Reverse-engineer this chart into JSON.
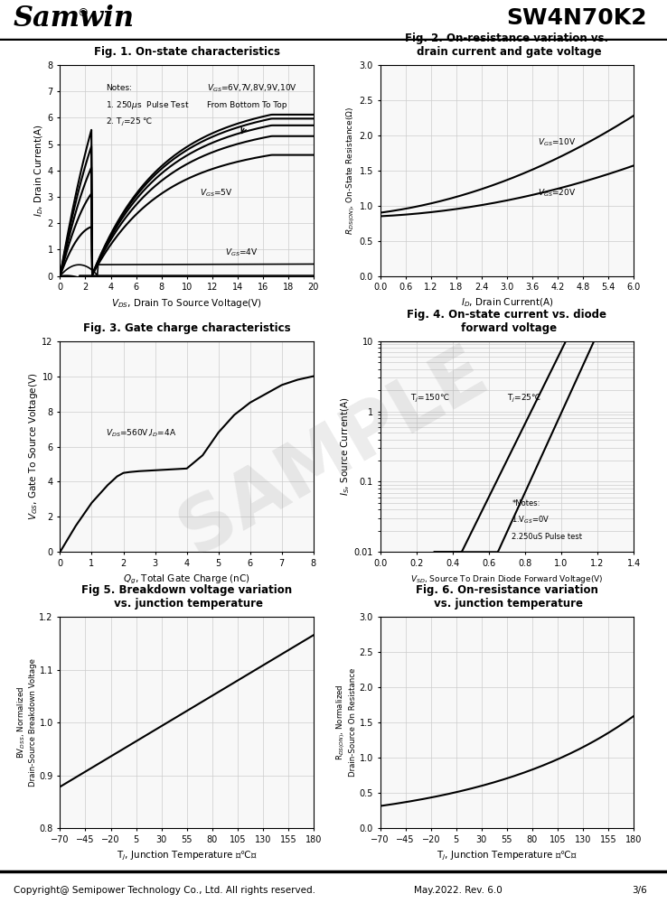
{
  "title_left": "Samwin",
  "title_right": "SW4N70K2",
  "fig1_title": "Fig. 1. On-state characteristics",
  "fig2_title": "Fig. 2. On-resistance variation vs.\n drain current and gate voltage",
  "fig3_title": "Fig. 3. Gate charge characteristics",
  "fig4_title": "Fig. 4. On-state current vs. diode\n forward voltage",
  "fig5_title": "Fig 5. Breakdown voltage variation\n vs. junction temperature",
  "fig6_title": "Fig. 6. On-resistance variation\n vs. junction temperature",
  "footer_left": "Copyright@ Semipower Technology Co., Ltd. All rights reserved.",
  "footer_mid": "May.2022. Rev. 6.0",
  "footer_right": "3/6",
  "bg_color": "#ffffff",
  "grid_color": "#cccccc",
  "line_color": "#000000"
}
